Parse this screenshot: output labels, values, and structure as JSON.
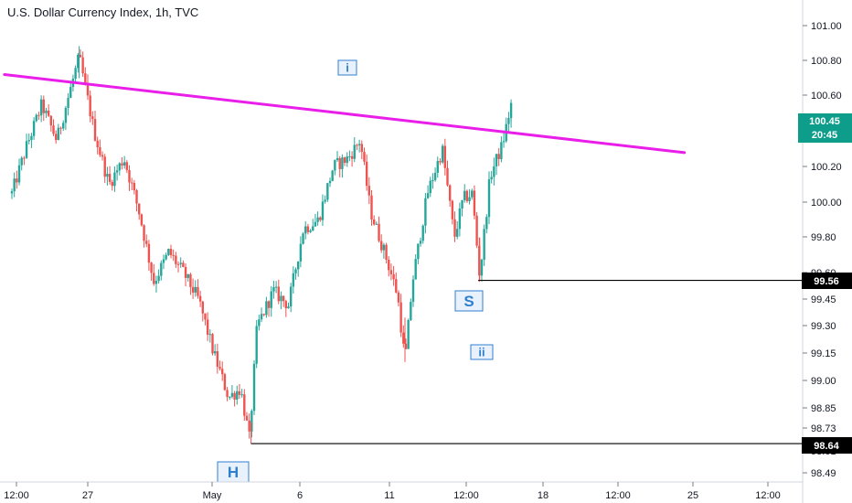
{
  "title": "U.S. Dollar Currency Index, 1h, TVC",
  "colors": {
    "up": "#26a69a",
    "down": "#ef5350",
    "trendline": "#e91ee9",
    "current": "#0d9d8a",
    "level": "#000000",
    "marker": "#2f7fd1"
  },
  "chart_data": {
    "type": "candlestick",
    "title": "U.S. Dollar Currency Index, 1h, TVC",
    "ylim": [
      98.4,
      101.2
    ],
    "y_ticks": [
      "101.00",
      "100.80",
      "100.60",
      "100.45",
      "100.20",
      "100.00",
      "99.80",
      "99.60",
      "99.45",
      "99.30",
      "99.15",
      "99.00",
      "98.85",
      "98.73",
      "98.61",
      "98.49"
    ],
    "x_ticks": [
      "12:00",
      "27",
      "May",
      "6",
      "11",
      "12:00",
      "18",
      "12:00",
      "25",
      "12:00"
    ],
    "grid": false,
    "current_price": "100.45",
    "countdown": "20:45",
    "price_labels": [
      "99.56",
      "98.64"
    ],
    "markers": [
      "i",
      "ii",
      "S",
      "H"
    ],
    "trendline": [
      [
        -0.5,
        100.72
      ],
      [
        45.0,
        100.28
      ]
    ],
    "support_lines": [
      {
        "label": "99.56",
        "value": 99.56,
        "x_start": 31.2
      },
      {
        "label": "98.64",
        "value": 98.64,
        "x_start": 16.0
      }
    ],
    "swing_points": [
      {
        "x": 0.0,
        "y": 100.05
      },
      {
        "x": 1.0,
        "y": 100.32
      },
      {
        "x": 2.0,
        "y": 100.55
      },
      {
        "x": 3.0,
        "y": 100.35
      },
      {
        "x": 4.5,
        "y": 100.82
      },
      {
        "x": 5.5,
        "y": 100.4
      },
      {
        "x": 6.5,
        "y": 100.1
      },
      {
        "x": 7.5,
        "y": 100.25
      },
      {
        "x": 8.5,
        "y": 99.95
      },
      {
        "x": 9.5,
        "y": 99.55
      },
      {
        "x": 10.5,
        "y": 99.72
      },
      {
        "x": 11.5,
        "y": 99.6
      },
      {
        "x": 12.5,
        "y": 99.45
      },
      {
        "x": 13.5,
        "y": 99.15
      },
      {
        "x": 14.5,
        "y": 98.9
      },
      {
        "x": 15.3,
        "y": 98.95
      },
      {
        "x": 15.9,
        "y": 98.66
      },
      {
        "x": 16.4,
        "y": 99.3
      },
      {
        "x": 17.5,
        "y": 99.5
      },
      {
        "x": 18.5,
        "y": 99.42
      },
      {
        "x": 19.5,
        "y": 99.85
      },
      {
        "x": 20.5,
        "y": 99.9
      },
      {
        "x": 21.5,
        "y": 100.2
      },
      {
        "x": 22.5,
        "y": 100.25
      },
      {
        "x": 23.3,
        "y": 100.35
      },
      {
        "x": 24.0,
        "y": 99.95
      },
      {
        "x": 25.0,
        "y": 99.7
      },
      {
        "x": 25.8,
        "y": 99.48
      },
      {
        "x": 26.3,
        "y": 99.1
      },
      {
        "x": 26.8,
        "y": 99.55
      },
      {
        "x": 27.8,
        "y": 100.05
      },
      {
        "x": 28.8,
        "y": 100.3
      },
      {
        "x": 29.6,
        "y": 99.8
      },
      {
        "x": 30.2,
        "y": 100.02
      },
      {
        "x": 30.8,
        "y": 100.05
      },
      {
        "x": 31.3,
        "y": 99.58
      },
      {
        "x": 32.0,
        "y": 100.15
      },
      {
        "x": 32.8,
        "y": 100.32
      },
      {
        "x": 33.4,
        "y": 100.55
      }
    ]
  }
}
